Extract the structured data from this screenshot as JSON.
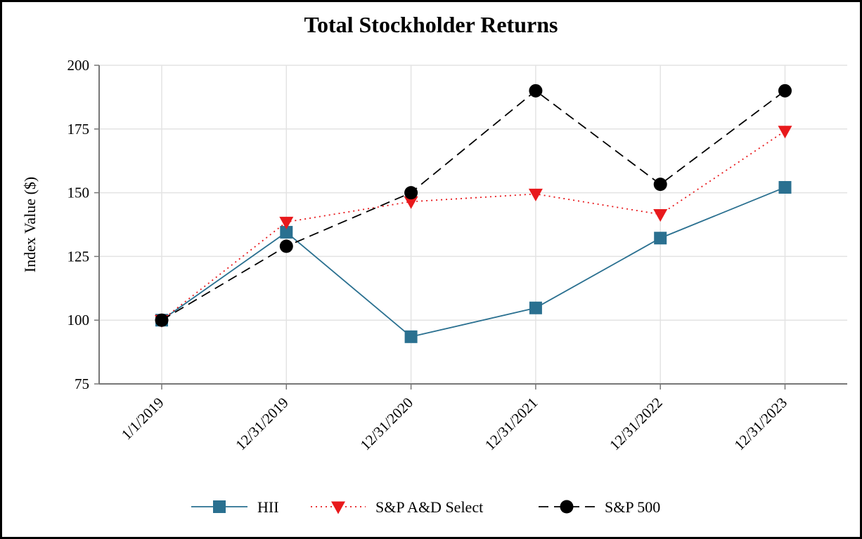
{
  "chart_data": {
    "type": "line",
    "title": "Total Stockholder Returns",
    "xlabel": "",
    "ylabel": "Index Value ($)",
    "ylim": [
      75,
      200
    ],
    "yticks": [
      75,
      100,
      125,
      150,
      175,
      200
    ],
    "grid": true,
    "legend_position": "bottom",
    "categories": [
      "1/1/2019",
      "12/31/2019",
      "12/31/2020",
      "12/31/2021",
      "12/31/2022",
      "12/31/2023"
    ],
    "series": [
      {
        "name": "HII",
        "values": [
          100,
          134.5,
          93.5,
          104.8,
          132.2,
          152.1
        ],
        "color": "#2a7090",
        "marker": "square",
        "dash": "solid"
      },
      {
        "name": "S&P A&D Select",
        "values": [
          100,
          138.5,
          146.5,
          149.5,
          141.5,
          174.2
        ],
        "color": "#e8191c",
        "marker": "triangle-down",
        "dash": "dotted"
      },
      {
        "name": "S&P 500",
        "values": [
          100,
          129,
          150,
          190,
          153.3,
          190
        ],
        "color": "#000000",
        "marker": "circle",
        "dash": "dashed"
      }
    ]
  }
}
